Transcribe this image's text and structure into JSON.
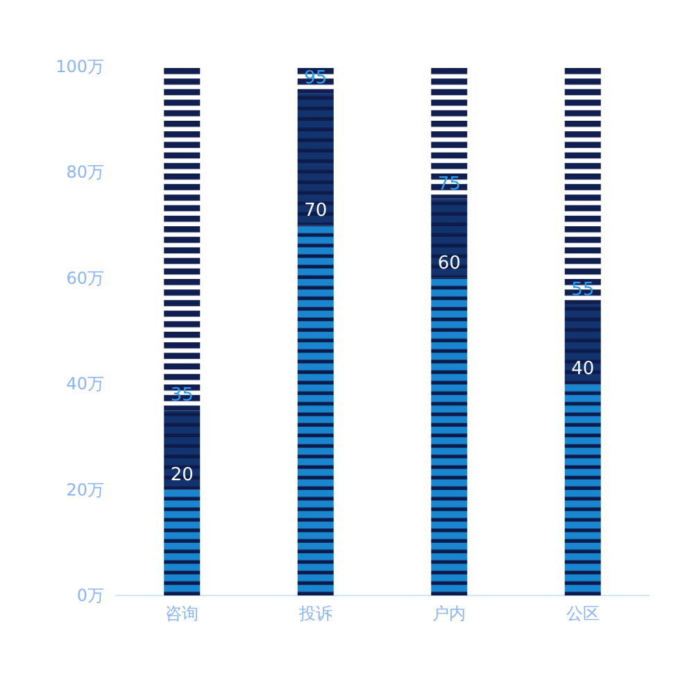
{
  "chart_data": {
    "type": "bar",
    "stacked": true,
    "categories": [
      "咨询",
      "投诉",
      "户内",
      "公区"
    ],
    "series": [
      {
        "color": "#1a86d0",
        "values": [
          20,
          70,
          60,
          40
        ],
        "value_labels": [
          "20",
          "70",
          "60",
          "40"
        ]
      },
      {
        "color": "#13336e",
        "values": [
          15,
          25,
          15,
          15
        ]
      },
      {
        "color": "#101e50",
        "values": [
          65,
          5,
          25,
          45
        ]
      }
    ],
    "annotations": [
      {
        "text": "35",
        "x": "咨询",
        "y": 35
      },
      {
        "text": "95",
        "x": "投诉",
        "y": 95
      },
      {
        "text": "75",
        "x": "户内",
        "y": 75
      },
      {
        "text": "55",
        "x": "公区",
        "y": 55
      }
    ],
    "ylim": [
      0,
      100
    ],
    "yticks": [
      {
        "value": 0,
        "label": "0万"
      },
      {
        "value": 20,
        "label": "20万"
      },
      {
        "value": 40,
        "label": "40万"
      },
      {
        "value": 60,
        "label": "60万"
      },
      {
        "value": 80,
        "label": "80万"
      },
      {
        "value": 100,
        "label": "100万"
      }
    ]
  }
}
